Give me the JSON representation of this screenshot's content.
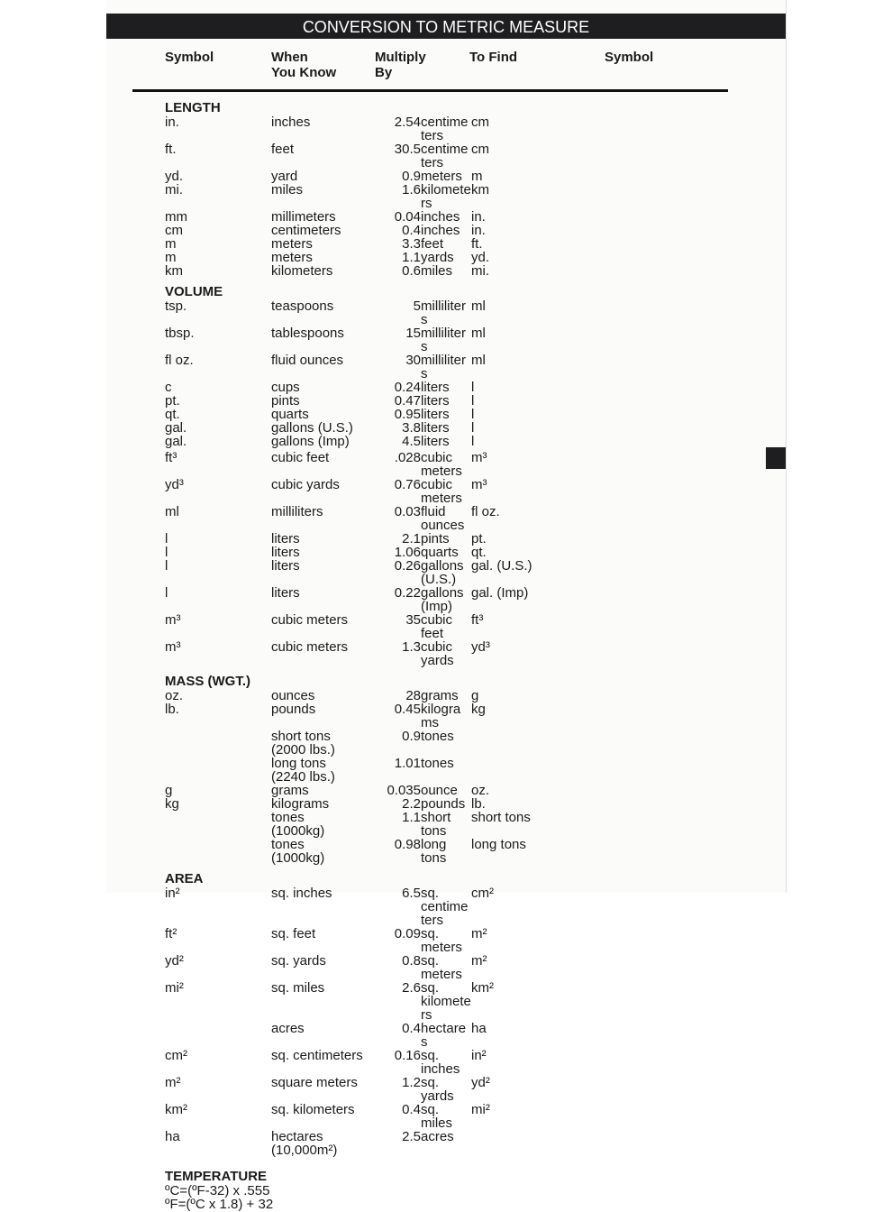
{
  "title": "CONVERSION TO METRIC MEASURE",
  "headers": [
    "Symbol",
    "When\nYou Know",
    "Multiply\nBy",
    "To Find",
    "Symbol"
  ],
  "sections": [
    {
      "title": "LENGTH",
      "rows": [
        [
          "in.",
          "inches",
          "2.54",
          "centimeters",
          "cm"
        ],
        [
          "ft.",
          "feet",
          "30.5",
          "centimeters",
          "cm"
        ],
        [
          "yd.",
          "yard",
          "0.9",
          "meters",
          "m"
        ],
        [
          "mi.",
          "miles",
          "1.6",
          "kilometers",
          "km"
        ],
        [
          "mm",
          "millimeters",
          "0.04",
          "inches",
          "in."
        ],
        [
          "cm",
          "centimeters",
          "0.4",
          "inches",
          "in."
        ],
        [
          "m",
          "meters",
          "3.3",
          "feet",
          "ft."
        ],
        [
          "m",
          "meters",
          "1.1",
          "yards",
          "yd."
        ],
        [
          "km",
          "kilometers",
          "0.6",
          "miles",
          "mi."
        ]
      ]
    },
    {
      "title": "VOLUME",
      "rows": [
        [
          "tsp.",
          "teaspoons",
          "5",
          "milliliters",
          "ml"
        ],
        [
          "tbsp.",
          "tablespoons",
          "15",
          "milliliters",
          "ml"
        ],
        [
          "fl oz.",
          "fluid ounces",
          "30",
          "milliliters",
          "ml"
        ],
        [
          "c",
          "cups",
          "0.24",
          "liters",
          "l"
        ],
        [
          "pt.",
          "pints",
          "0.47",
          "liters",
          "l"
        ],
        [
          "qt.",
          "quarts",
          "0.95",
          "liters",
          "l"
        ],
        [
          "gal.",
          "gallons (U.S.)",
          "3.8",
          "liters",
          "l"
        ],
        [
          "gal.",
          "gallons (Imp)",
          "4.5",
          "liters",
          "l"
        ],
        [
          "ft³",
          "cubic feet",
          ".028",
          "cubic meters",
          "m³"
        ],
        [
          "yd³",
          "cubic yards",
          "0.76",
          "cubic meters",
          "m³"
        ],
        [
          "ml",
          "milliliters",
          "0.03",
          "fluid ounces",
          "fl oz."
        ],
        [
          "l",
          "liters",
          "2.1",
          "pints",
          "pt."
        ],
        [
          "l",
          "liters",
          "1.06",
          "quarts",
          "qt."
        ],
        [
          "l",
          "liters",
          "0.26",
          "gallons (U.S.)",
          "gal. (U.S.)"
        ],
        [
          "l",
          "liters",
          "0.22",
          "gallons (Imp)",
          "gal. (Imp)"
        ],
        [
          "m³",
          "cubic meters",
          "35",
          "cubic feet",
          "ft³"
        ],
        [
          "m³",
          "cubic meters",
          "1.3",
          "cubic yards",
          "yd³"
        ]
      ]
    },
    {
      "title": "MASS (WGT.)",
      "rows": [
        [
          "oz.",
          "ounces",
          "28",
          "grams",
          "g"
        ],
        [
          "lb.",
          "pounds",
          "0.45",
          "kilograms",
          "kg"
        ],
        [
          "",
          "short tons\n(2000 lbs.)",
          "0.9",
          "tones",
          ""
        ],
        [
          "",
          "long tons\n(2240 lbs.)",
          "1.01",
          "tones",
          ""
        ],
        [
          "g",
          "grams",
          "0.035",
          "ounce",
          "oz."
        ],
        [
          "kg",
          "kilograms",
          "2.2",
          "pounds",
          "lb."
        ],
        [
          "",
          "tones\n(1000kg)",
          "1.1",
          "short tons",
          "short tons"
        ],
        [
          "",
          "tones\n(1000kg)",
          "0.98",
          "long tons",
          "long tons"
        ]
      ]
    },
    {
      "title": "AREA",
      "rows": [
        [
          "in²",
          "sq. inches",
          "6.5",
          "sq. centimeters",
          "cm²"
        ],
        [
          "ft²",
          "sq. feet",
          "0.09",
          "sq. meters",
          "m²"
        ],
        [
          "yd²",
          "sq. yards",
          "0.8",
          "sq. meters",
          "m²"
        ],
        [
          "mi²",
          "sq. miles",
          "2.6",
          "sq. kilometers",
          "km²"
        ],
        [
          "",
          "acres",
          "0.4",
          "hectares",
          "ha"
        ],
        [
          "cm²",
          "sq. centimeters",
          "0.16",
          "sq. inches",
          "in²"
        ],
        [
          "m²",
          "square meters",
          "1.2",
          "sq. yards",
          "yd²"
        ],
        [
          "km²",
          "sq. kilometers",
          "0.4",
          "sq. miles",
          "mi²"
        ],
        [
          "ha",
          "hectares\n(10,000m²)",
          "2.5",
          "acres",
          ""
        ]
      ]
    }
  ],
  "temperature": {
    "title": "TEMPERATURE",
    "lines": [
      "ºC=(ºF-32) x .555",
      "ºF=(ºC x 1.8) + 32"
    ]
  }
}
